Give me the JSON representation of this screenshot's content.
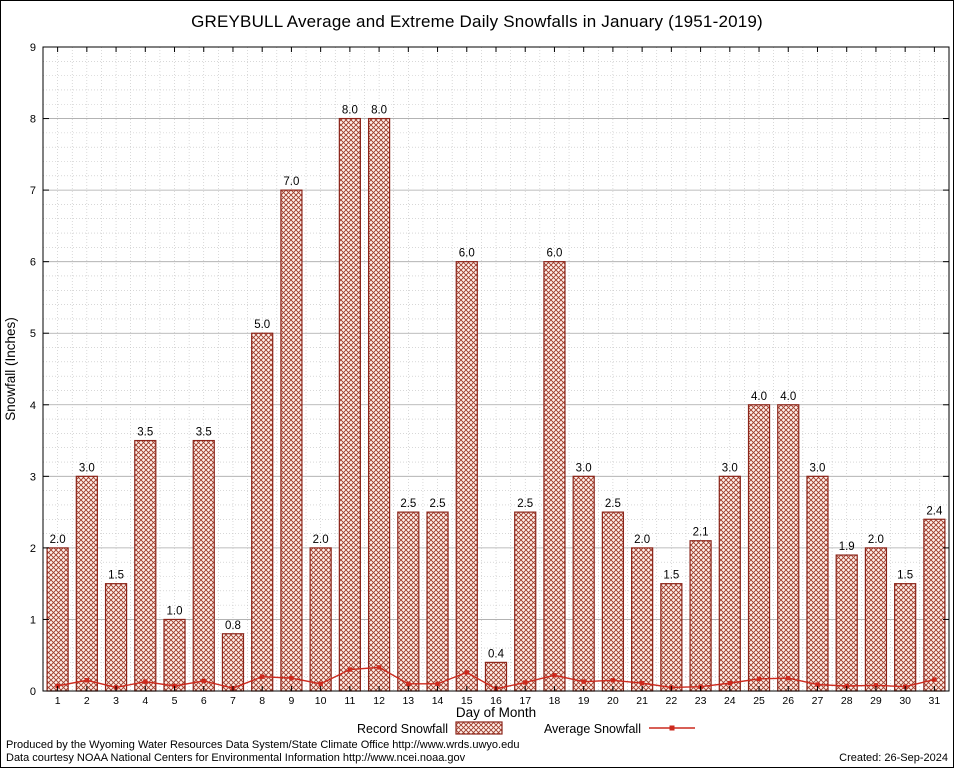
{
  "title": "GREYBULL Average and Extreme Daily Snowfalls in January (1951-2019)",
  "legend": {
    "record": "Record Snowfall",
    "average": "Average Snowfall"
  },
  "footer": {
    "line1": "Produced by the Wyoming Water Resources Data System/State Climate Office http://www.wrds.uwyo.edu",
    "line2": "Data courtesy NOAA National Centers for Environmental Information http://www.ncei.noaa.gov",
    "created": "Created: 26-Sep-2024"
  },
  "colors": {
    "bar_stroke": "#8b251a",
    "hatch_line": "#a03a28",
    "hatch_bg": "#fdf1ec",
    "line": "#cc2a1e",
    "grid_major": "#a8a8a8",
    "grid_minor": "#c0c0c0"
  },
  "chart_data": {
    "type": "bar",
    "title": "GREYBULL Average and Extreme Daily Snowfalls in January (1951-2019)",
    "xlabel": "Day of Month",
    "ylabel": "Snowfall (Inches)",
    "ylim": [
      0,
      9
    ],
    "grid": true,
    "legend_position": "bottom",
    "categories": [
      1,
      2,
      3,
      4,
      5,
      6,
      7,
      8,
      9,
      10,
      11,
      12,
      13,
      14,
      15,
      16,
      17,
      18,
      19,
      20,
      21,
      22,
      23,
      24,
      25,
      26,
      27,
      28,
      29,
      30,
      31
    ],
    "series": [
      {
        "name": "Record Snowfall",
        "type": "bar",
        "values": [
          2.0,
          3.0,
          1.5,
          3.5,
          1.0,
          3.5,
          0.8,
          5.0,
          7.0,
          2.0,
          8.0,
          8.0,
          2.5,
          2.5,
          6.0,
          0.4,
          2.5,
          6.0,
          3.0,
          2.5,
          2.0,
          1.5,
          2.1,
          3.0,
          4.0,
          4.0,
          3.0,
          1.9,
          2.0,
          1.5,
          2.4
        ]
      },
      {
        "name": "Average Snowfall",
        "type": "line",
        "values": [
          0.07,
          0.15,
          0.05,
          0.13,
          0.07,
          0.14,
          0.04,
          0.2,
          0.18,
          0.1,
          0.3,
          0.33,
          0.1,
          0.1,
          0.26,
          0.03,
          0.12,
          0.22,
          0.13,
          0.15,
          0.11,
          0.05,
          0.06,
          0.11,
          0.17,
          0.18,
          0.09,
          0.07,
          0.08,
          0.06,
          0.16
        ]
      }
    ]
  }
}
